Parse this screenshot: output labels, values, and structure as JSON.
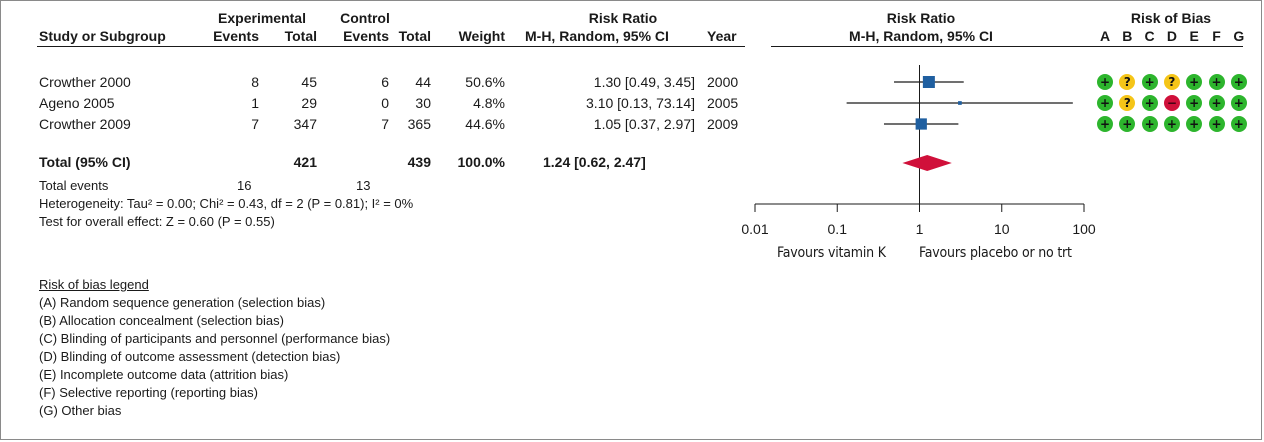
{
  "headers": {
    "experimental": "Experimental",
    "control": "Control",
    "risk_ratio_left": "Risk Ratio",
    "risk_ratio_right": "Risk Ratio",
    "risk_of_bias": "Risk of Bias",
    "study": "Study or Subgroup",
    "events1": "Events",
    "total1": "Total",
    "events2": "Events",
    "total2": "Total",
    "weight": "Weight",
    "method_left": "M-H, Random, 95% CI",
    "year": "Year",
    "method_right": "M-H, Random, 95% CI",
    "bias_letters": [
      "A",
      "B",
      "C",
      "D",
      "E",
      "F",
      "G"
    ]
  },
  "studies": [
    {
      "name": "Crowther 2000",
      "e1": "8",
      "t1": "45",
      "e2": "6",
      "t2": "44",
      "weight": "50.6%",
      "ci": "1.30 [0.49, 3.45]",
      "year": "2000",
      "bias": [
        "+",
        "?",
        "+",
        "?",
        "+",
        "+",
        "+"
      ]
    },
    {
      "name": "Ageno 2005",
      "e1": "1",
      "t1": "29",
      "e2": "0",
      "t2": "30",
      "weight": "4.8%",
      "ci": "3.10 [0.13, 73.14]",
      "year": "2005",
      "bias": [
        "+",
        "?",
        "+",
        "−",
        "+",
        "+",
        "+"
      ]
    },
    {
      "name": "Crowther 2009",
      "e1": "7",
      "t1": "347",
      "e2": "7",
      "t2": "365",
      "weight": "44.6%",
      "ci": "1.05 [0.37, 2.97]",
      "year": "2009",
      "bias": [
        "+",
        "+",
        "+",
        "+",
        "+",
        "+",
        "+"
      ]
    }
  ],
  "total": {
    "label": "Total (95% CI)",
    "t1": "421",
    "t2": "439",
    "weight": "100.0%",
    "ci": "1.24 [0.62, 2.47]"
  },
  "events_label": "Total events",
  "events1": "16",
  "events2": "13",
  "heterogeneity": "Heterogeneity: Tau² = 0.00; Chi² = 0.43, df = 2 (P = 0.81); I² = 0%",
  "overall_effect": "Test for overall effect: Z = 0.60 (P = 0.55)",
  "legend": {
    "title": "Risk of bias legend",
    "items": [
      "(A) Random sequence generation (selection bias)",
      "(B) Allocation concealment (selection bias)",
      "(C) Blinding of participants and personnel (performance bias)",
      "(D) Blinding of outcome assessment (detection bias)",
      "(E) Incomplete outcome data (attrition bias)",
      "(F) Selective reporting (reporting bias)",
      "(G) Other bias"
    ]
  },
  "bias_colors": {
    "+": "#2db52d",
    "?": "#f5c518",
    "−": "#d0103a"
  },
  "chart_data": {
    "type": "forest",
    "x_scale": "log",
    "xlim": [
      0.01,
      100
    ],
    "ticks": [
      0.01,
      0.1,
      1,
      10,
      100
    ],
    "tick_labels": [
      "0.01",
      "0.1",
      "1",
      "10",
      "100"
    ],
    "null_line": 1,
    "favours_left": "Favours vitamin K",
    "favours_right": "Favours placebo or no trt",
    "series": [
      {
        "label": "Crowther 2000",
        "estimate": 1.3,
        "lower": 0.49,
        "upper": 3.45,
        "weight": 50.6
      },
      {
        "label": "Ageno 2005",
        "estimate": 3.1,
        "lower": 0.13,
        "upper": 73.14,
        "weight": 4.8
      },
      {
        "label": "Crowther 2009",
        "estimate": 1.05,
        "lower": 0.37,
        "upper": 2.97,
        "weight": 44.6
      }
    ],
    "pooled": {
      "estimate": 1.24,
      "lower": 0.62,
      "upper": 2.47
    },
    "marker_color": "#1f5fa0",
    "diamond_color": "#d0103a"
  }
}
